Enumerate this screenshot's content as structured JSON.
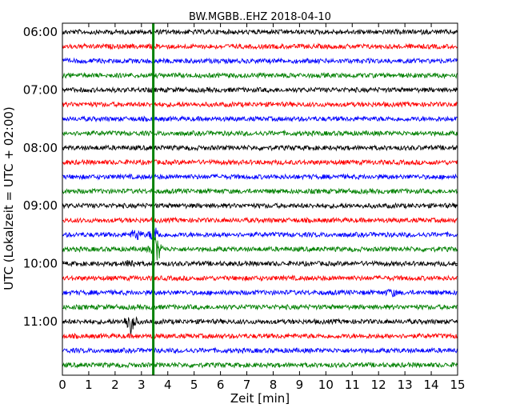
{
  "chart_data": {
    "type": "line",
    "title": "BW.MGBB..EHZ 2018-04-10",
    "xlabel": "Zeit  [min]",
    "ylabel": "UTC (Lokalzeit = UTC + 02:00)",
    "xlim": [
      0,
      15
    ],
    "x_ticks": [
      "0",
      "1",
      "2",
      "3",
      "4",
      "5",
      "6",
      "7",
      "8",
      "9",
      "10",
      "11",
      "12",
      "13",
      "14",
      "15"
    ],
    "y_tick_labels": [
      "06:00",
      "07:00",
      "08:00",
      "09:00",
      "10:00",
      "11:00"
    ],
    "trace_interval_min": 15,
    "first_trace": "06:00",
    "last_trace": "11:45",
    "trace_colors": [
      "#000000",
      "#ff0000",
      "#0000ff",
      "#008000"
    ],
    "event_marker": {
      "color": "#008000",
      "time_min": 3.45,
      "from": "06:00",
      "to": "11:45"
    },
    "bursts": [
      {
        "trace": "09:30",
        "time_min": 3.5,
        "amplitude": 0.9,
        "color": "#0000ff"
      },
      {
        "trace": "09:30",
        "time_min": 2.8,
        "amplitude": 0.6,
        "color": "#0000ff"
      },
      {
        "trace": "09:45",
        "time_min": 3.6,
        "amplitude": 0.7,
        "color": "#008000"
      },
      {
        "trace": "09:45",
        "time_min": 3.5,
        "amplitude": 1.0,
        "color": "#008000"
      },
      {
        "trace": "10:00",
        "time_min": 2.6,
        "amplitude": 0.4,
        "color": "#000000"
      },
      {
        "trace": "11:00",
        "time_min": 2.58,
        "amplitude": 1.5,
        "color": "#000000"
      },
      {
        "trace": "10:30",
        "time_min": 12.5,
        "amplitude": 0.3,
        "color": "#0000ff"
      }
    ]
  }
}
